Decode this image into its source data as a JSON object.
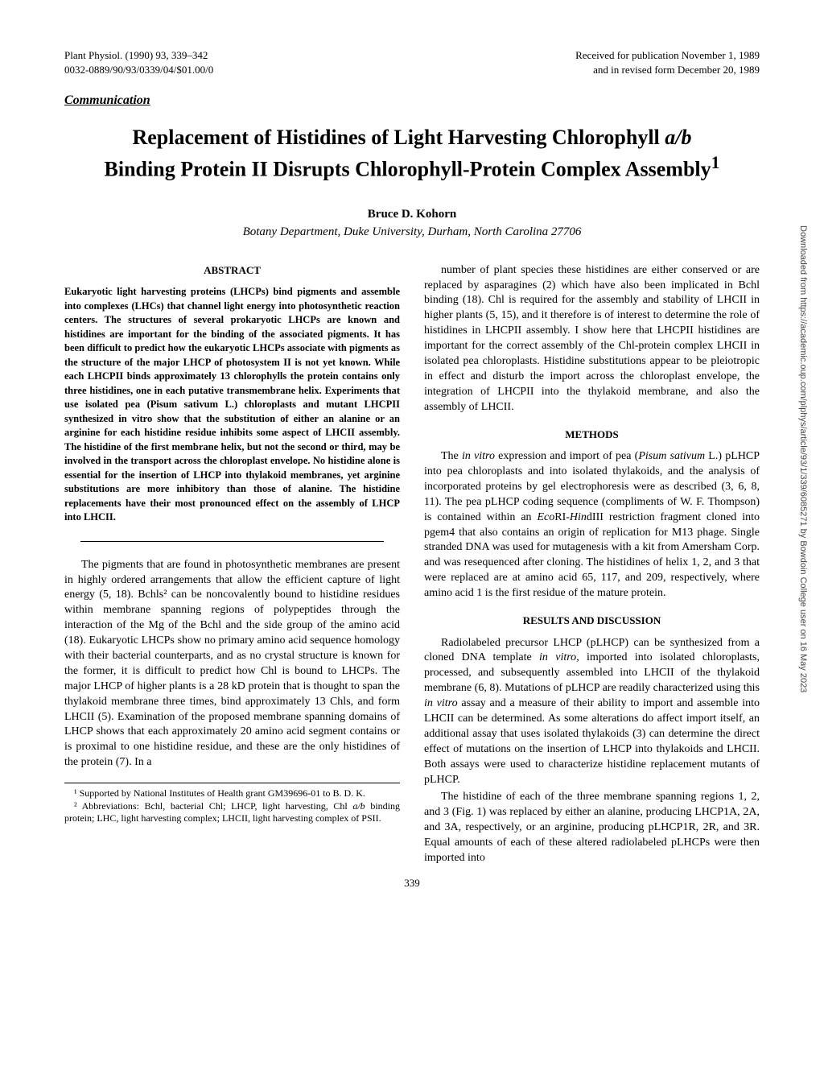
{
  "header": {
    "left_line1": "Plant Physiol. (1990) 93, 339–342",
    "left_line2": "0032-0889/90/93/0339/04/$01.00/0",
    "right_line1": "Received for publication November 1, 1989",
    "right_line2": "and in revised form December 20, 1989"
  },
  "section_label": "Communication",
  "title": "Replacement of Histidines of Light Harvesting Chlorophyll a/b Binding Protein II Disrupts Chlorophyll-Protein Complex Assembly¹",
  "author": "Bruce D. Kohorn",
  "affiliation": "Botany Department, Duke University, Durham, North Carolina 27706",
  "abstract_heading": "ABSTRACT",
  "abstract_text": "Eukaryotic light harvesting proteins (LHCPs) bind pigments and assemble into complexes (LHCs) that channel light energy into photosynthetic reaction centers. The structures of several prokaryotic LHCPs are known and histidines are important for the binding of the associated pigments. It has been difficult to predict how the eukaryotic LHCPs associate with pigments as the structure of the major LHCP of photosystem II is not yet known. While each LHCPII binds approximately 13 chlorophylls the protein contains only three histidines, one in each putative transmembrane helix. Experiments that use isolated pea (Pisum sativum L.) chloroplasts and mutant LHCPII synthesized in vitro show that the substitution of either an alanine or an arginine for each histidine residue inhibits some aspect of LHCII assembly. The histidine of the first membrane helix, but not the second or third, may be involved in the transport across the chloroplast envelope. No histidine alone is essential for the insertion of LHCP into thylakoid membranes, yet arginine substitutions are more inhibitory than those of alanine. The histidine replacements have their most pronounced effect on the assembly of LHCP into LHCII.",
  "left_body_1": "The pigments that are found in photosynthetic membranes are present in highly ordered arrangements that allow the efficient capture of light energy (5, 18). Bchls² can be noncovalently bound to histidine residues within membrane spanning regions of polypeptides through the interaction of the Mg of the Bchl and the side group of the amino acid (18). Eukaryotic LHCPs show no primary amino acid sequence homology with their bacterial counterparts, and as no crystal structure is known for the former, it is difficult to predict how Chl is bound to LHCPs. The major LHCP of higher plants is a 28 kD protein that is thought to span the thylakoid membrane three times, bind approximately 13 Chls, and form LHCII (5). Examination of the proposed membrane spanning domains of LHCP shows that each approximately 20 amino acid segment contains or is proximal to one histidine residue, and these are the only histidines of the protein (7). In a",
  "footnote1": "¹ Supported by National Institutes of Health grant GM39696-01 to B. D. K.",
  "footnote2": "² Abbreviations: Bchl, bacterial Chl; LHCP, light harvesting, Chl a/b binding protein; LHC, light harvesting complex; LHCII, light harvesting complex of PSII.",
  "right_body_1": "number of plant species these histidines are either conserved or are replaced by asparagines (2) which have also been implicated in Bchl binding (18). Chl is required for the assembly and stability of LHCII in higher plants (5, 15), and it therefore is of interest to determine the role of histidines in LHCPII assembly. I show here that LHCPII histidines are important for the correct assembly of the Chl-protein complex LHCII in isolated pea chloroplasts. Histidine substitutions appear to be pleiotropic in effect and disturb the import across the chloroplast envelope, the integration of LHCPII into the thylakoid membrane, and also the assembly of LHCII.",
  "methods_heading": "METHODS",
  "methods_text": "The in vitro expression and import of pea (Pisum sativum L.) pLHCP into pea chloroplasts and into isolated thylakoids, and the analysis of incorporated proteins by gel electrophoresis were as described (3, 6, 8, 11). The pea pLHCP coding sequence (compliments of W. F. Thompson) is contained within an EcoRI-HindIII restriction fragment cloned into pgem4 that also contains an origin of replication for M13 phage. Single stranded DNA was used for mutagenesis with a kit from Amersham Corp. and was resequenced after cloning. The histidines of helix 1, 2, and 3 that were replaced are at amino acid 65, 117, and 209, respectively, where amino acid 1 is the first residue of the mature protein.",
  "results_heading": "RESULTS AND DISCUSSION",
  "results_text_1": "Radiolabeled precursor LHCP (pLHCP) can be synthesized from a cloned DNA template in vitro, imported into isolated chloroplasts, processed, and subsequently assembled into LHCII of the thylakoid membrane (6, 8). Mutations of pLHCP are readily characterized using this in vitro assay and a measure of their ability to import and assemble into LHCII can be determined. As some alterations do affect import itself, an additional assay that uses isolated thylakoids (3) can determine the direct effect of mutations on the insertion of LHCP into thylakoids and LHCII. Both assays were used to characterize histidine replacement mutants of pLHCP.",
  "results_text_2": "The histidine of each of the three membrane spanning regions 1, 2, and 3 (Fig. 1) was replaced by either an alanine, producing LHCP1A, 2A, and 3A, respectively, or an arginine, producing pLHCP1R, 2R, and 3R. Equal amounts of each of these altered radiolabeled pLHCPs were then imported into",
  "page_number": "339",
  "side_text": "Downloaded from https://academic.oup.com/plphys/article/93/1/339/6085271 by Bowdoin College user on 16 May 2023"
}
